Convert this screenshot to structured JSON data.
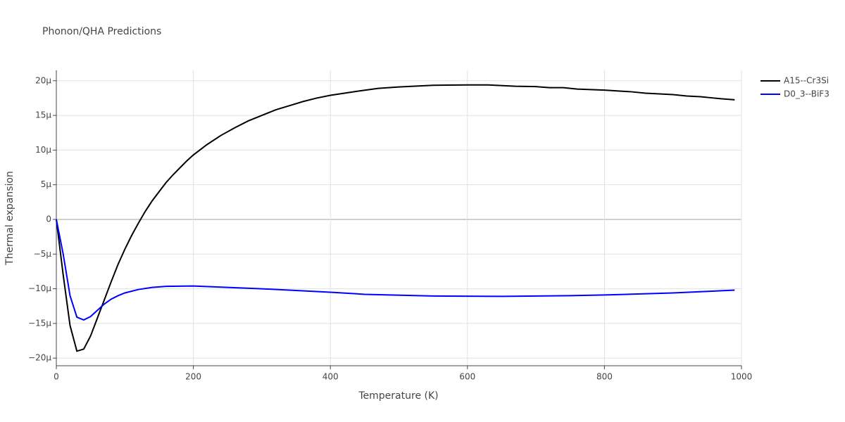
{
  "chart_data": {
    "type": "line",
    "title": "Phonon/QHA Predictions",
    "xlabel": "Temperature (K)",
    "ylabel": "Thermal expansion",
    "xlim": [
      0,
      1000
    ],
    "ylim": [
      -2.11e-05,
      2.15e-05
    ],
    "xticks": [
      0,
      200,
      400,
      600,
      800,
      1000
    ],
    "yticks": [
      {
        "value": -2e-05,
        "label": "−20μ"
      },
      {
        "value": -1.5e-05,
        "label": "−15μ"
      },
      {
        "value": -1e-05,
        "label": "−10μ"
      },
      {
        "value": -5e-06,
        "label": "−5μ"
      },
      0,
      {
        "value": 5e-06,
        "label": "5μ"
      },
      {
        "value": 1e-05,
        "label": "10μ"
      },
      {
        "value": 1.5e-05,
        "label": "15μ"
      },
      {
        "value": 2e-05,
        "label": "20μ"
      }
    ],
    "grid": true,
    "legend": "top-right",
    "series": [
      {
        "name": "A15--Cr3Si",
        "color": "#000000",
        "x": [
          0,
          10,
          20,
          30,
          40,
          50,
          60,
          70,
          80,
          90,
          100,
          110,
          120,
          130,
          140,
          150,
          160,
          170,
          180,
          190,
          200,
          220,
          240,
          260,
          280,
          300,
          320,
          340,
          360,
          380,
          400,
          440,
          470,
          500,
          550,
          600,
          630,
          670,
          700,
          720,
          740,
          760,
          800,
          840,
          860,
          880,
          900,
          920,
          940,
          960,
          970,
          990
        ],
        "values": [
          0,
          -8e-06,
          -1.53e-05,
          -1.9e-05,
          -1.87e-05,
          -1.68e-05,
          -1.42e-05,
          -1.16e-05,
          -9e-06,
          -6.5e-06,
          -4.3e-06,
          -2.3e-06,
          -5e-07,
          1.2e-06,
          2.7e-06,
          4e-06,
          5.3e-06,
          6.4e-06,
          7.4e-06,
          8.4e-06,
          9.3e-06,
          1.08e-05,
          1.21e-05,
          1.32e-05,
          1.42e-05,
          1.5e-05,
          1.58e-05,
          1.64e-05,
          1.7e-05,
          1.75e-05,
          1.79e-05,
          1.85e-05,
          1.89e-05,
          1.91e-05,
          1.935e-05,
          1.94e-05,
          1.94e-05,
          1.92e-05,
          1.915e-05,
          1.9e-05,
          1.9e-05,
          1.88e-05,
          1.865e-05,
          1.84e-05,
          1.82e-05,
          1.81e-05,
          1.8e-05,
          1.78e-05,
          1.77e-05,
          1.75e-05,
          1.74e-05,
          1.725e-05
        ]
      },
      {
        "name": "D0_3--BiF3",
        "color": "#0000ff",
        "x": [
          0,
          10,
          20,
          30,
          40,
          50,
          60,
          70,
          80,
          90,
          100,
          120,
          140,
          160,
          200,
          250,
          300,
          400,
          450,
          550,
          650,
          750,
          800,
          900,
          990
        ],
        "values": [
          0,
          -5e-06,
          -1.1e-05,
          -1.41e-05,
          -1.45e-05,
          -1.4e-05,
          -1.31e-05,
          -1.22e-05,
          -1.15e-05,
          -1.1e-05,
          -1.06e-05,
          -1.01e-05,
          -9.8e-06,
          -9.65e-06,
          -9.6e-06,
          -9.8e-06,
          -1e-05,
          -1.05e-05,
          -1.08e-05,
          -1.105e-05,
          -1.11e-05,
          -1.1e-05,
          -1.09e-05,
          -1.06e-05,
          -1.02e-05
        ]
      }
    ]
  }
}
